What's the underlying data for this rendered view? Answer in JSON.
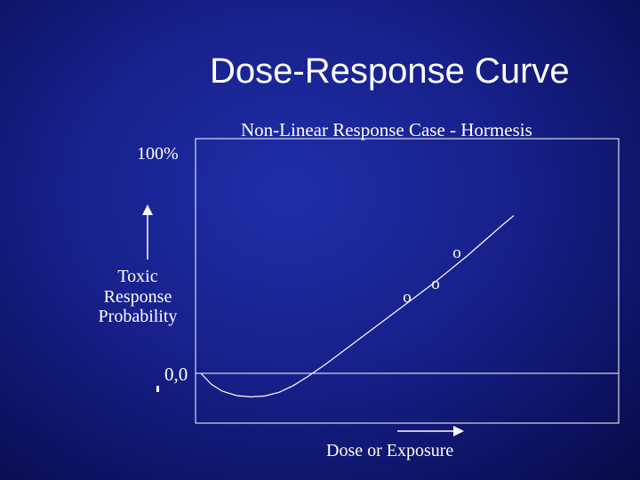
{
  "slide": {
    "title": "Dose-Response Curve"
  },
  "chart_data": {
    "type": "line",
    "title": "Non-Linear Response Case - Hormesis",
    "xlabel": "Dose or Exposure",
    "ylabel_lines": [
      "Toxic",
      "Response",
      "Probability"
    ],
    "y_max_label": "100%",
    "origin_label": "0,0",
    "xlim": [
      0,
      100
    ],
    "ylim": [
      -10,
      100
    ],
    "grid": false,
    "series": [
      {
        "x": [
          0,
          3,
          6,
          10,
          14,
          18,
          22,
          26,
          30,
          35,
          40,
          45,
          50,
          55,
          60,
          65,
          70,
          75,
          80,
          85,
          88
        ],
        "y": [
          0,
          -5,
          -8,
          -10,
          -10.6,
          -10.2,
          -8.5,
          -5.5,
          -1.5,
          4,
          10,
          16,
          22,
          28,
          34,
          40,
          46.5,
          53,
          60,
          67,
          71
        ]
      }
    ],
    "points": [
      {
        "label": "o",
        "x": 58,
        "y": 34
      },
      {
        "label": "o",
        "x": 66,
        "y": 40
      },
      {
        "label": "o",
        "x": 72,
        "y": 54
      }
    ],
    "colors": {
      "line": "#ffffff",
      "axis": "#ffffff"
    }
  }
}
